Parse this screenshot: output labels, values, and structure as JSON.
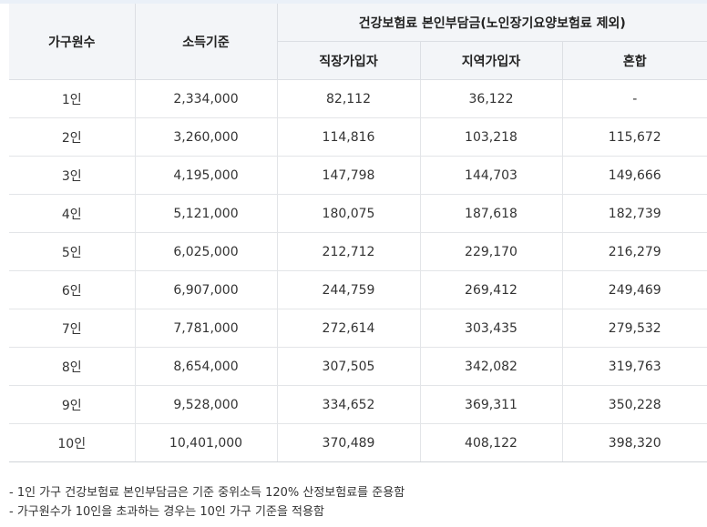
{
  "table": {
    "headers": {
      "household": "가구원수",
      "income": "소득기준",
      "group": "건강보험료 본인부담금(노인장기요양보험료 제외)",
      "workplace": "직장가입자",
      "regional": "지역가입자",
      "mixed": "혼합"
    },
    "rows": [
      {
        "household": "1인",
        "income": "2,334,000",
        "workplace": "82,112",
        "regional": "36,122",
        "mixed": "-"
      },
      {
        "household": "2인",
        "income": "3,260,000",
        "workplace": "114,816",
        "regional": "103,218",
        "mixed": "115,672"
      },
      {
        "household": "3인",
        "income": "4,195,000",
        "workplace": "147,798",
        "regional": "144,703",
        "mixed": "149,666"
      },
      {
        "household": "4인",
        "income": "5,121,000",
        "workplace": "180,075",
        "regional": "187,618",
        "mixed": "182,739"
      },
      {
        "household": "5인",
        "income": "6,025,000",
        "workplace": "212,712",
        "regional": "229,170",
        "mixed": "216,279"
      },
      {
        "household": "6인",
        "income": "6,907,000",
        "workplace": "244,759",
        "regional": "269,412",
        "mixed": "249,469"
      },
      {
        "household": "7인",
        "income": "7,781,000",
        "workplace": "272,614",
        "regional": "303,435",
        "mixed": "279,532"
      },
      {
        "household": "8인",
        "income": "8,654,000",
        "workplace": "307,505",
        "regional": "342,082",
        "mixed": "319,763"
      },
      {
        "household": "9인",
        "income": "9,528,000",
        "workplace": "334,652",
        "regional": "369,311",
        "mixed": "350,228"
      },
      {
        "household": "10인",
        "income": "10,401,000",
        "workplace": "370,489",
        "regional": "408,122",
        "mixed": "398,320"
      }
    ]
  },
  "notes": [
    "- 1인 가구 건강보험료 본인부담금은 기준 중위소득 120% 산정보험료를 준용함",
    "- 가구원수가 10인을 초과하는 경우는 10인 가구 기준을 적용함"
  ]
}
